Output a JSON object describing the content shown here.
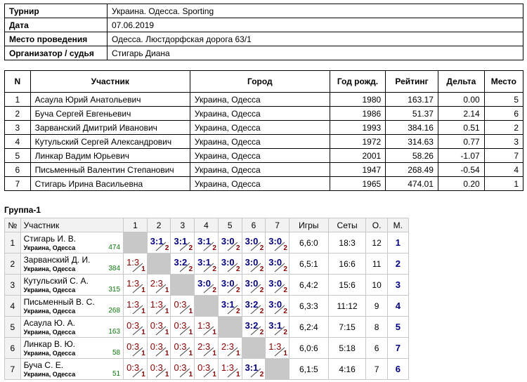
{
  "info": [
    {
      "key": "Турнир",
      "value": "Украина. Одесса. Sporting"
    },
    {
      "key": "Дата",
      "value": "07.06.2019"
    },
    {
      "key": "Место проведения",
      "value": "Одесса. Люстдорфская дорога 63/1"
    },
    {
      "key": "Организатор / судья",
      "value": "Стигарь Диана"
    }
  ],
  "players_table": {
    "headers": [
      "N",
      "Участник",
      "Город",
      "Год рожд.",
      "Рейтинг",
      "Дельта",
      "Место"
    ],
    "rows": [
      [
        "1",
        "Асаула Юрий Анатольевич",
        "Украина, Одесса",
        "1980",
        "163.17",
        "0.00",
        "5"
      ],
      [
        "2",
        "Буча Сергей Евгеньевич",
        "Украина, Одесса",
        "1986",
        "51.37",
        "2.14",
        "6"
      ],
      [
        "3",
        "Зарванский Дмитрий Иванович",
        "Украина, Одесса",
        "1993",
        "384.16",
        "0.51",
        "2"
      ],
      [
        "4",
        "Кутульский Сергей Александрович",
        "Украина, Одесса",
        "1972",
        "314.63",
        "0.77",
        "3"
      ],
      [
        "5",
        "Линкар Вадим Юрьевич",
        "Украина, Одесса",
        "2001",
        "58.26",
        "-1.07",
        "7"
      ],
      [
        "6",
        "Письменный Валентин Степанович",
        "Украина, Одесса",
        "1947",
        "268.49",
        "-0.54",
        "4"
      ],
      [
        "7",
        "Стигарь Ирина Васильевна",
        "Украина, Одесса",
        "1965",
        "474.01",
        "0.20",
        "1"
      ]
    ]
  },
  "group": {
    "title": "Группа-1",
    "headers": {
      "n": "№",
      "player": "Участник",
      "cols": [
        "1",
        "2",
        "3",
        "4",
        "5",
        "6",
        "7"
      ],
      "games": "Игры",
      "sets": "Сеты",
      "points": "О.",
      "place": "М."
    },
    "rows": [
      {
        "n": "1",
        "name": "Стигарь И. В.",
        "city": "Украина, Одесса",
        "rating": "474",
        "cells": [
          null,
          {
            "s": "3:1",
            "p": "2"
          },
          {
            "s": "3:1",
            "p": "2"
          },
          {
            "s": "3:1",
            "p": "2"
          },
          {
            "s": "3:0",
            "p": "2"
          },
          {
            "s": "3:0",
            "p": "2"
          },
          {
            "s": "3:0",
            "p": "2"
          }
        ],
        "games": "6,6:0",
        "sets": "18:3",
        "points": "12",
        "place": "1"
      },
      {
        "n": "2",
        "name": "Зарванский Д. И.",
        "city": "Украина, Одесса",
        "rating": "384",
        "cells": [
          {
            "s": "1:3",
            "p": "1"
          },
          null,
          {
            "s": "3:2",
            "p": "2"
          },
          {
            "s": "3:1",
            "p": "2"
          },
          {
            "s": "3:0",
            "p": "2"
          },
          {
            "s": "3:0",
            "p": "2"
          },
          {
            "s": "3:0",
            "p": "2"
          }
        ],
        "games": "6,5:1",
        "sets": "16:6",
        "points": "11",
        "place": "2"
      },
      {
        "n": "3",
        "name": "Кутульский С. А.",
        "city": "Украина, Одесса",
        "rating": "315",
        "cells": [
          {
            "s": "1:3",
            "p": "1"
          },
          {
            "s": "2:3",
            "p": "1"
          },
          null,
          {
            "s": "3:0",
            "p": "2"
          },
          {
            "s": "3:0",
            "p": "2"
          },
          {
            "s": "3:0",
            "p": "2"
          },
          {
            "s": "3:0",
            "p": "2"
          }
        ],
        "games": "6,4:2",
        "sets": "15:6",
        "points": "10",
        "place": "3"
      },
      {
        "n": "4",
        "name": "Письменный В. С.",
        "city": "Украина, Одесса",
        "rating": "268",
        "cells": [
          {
            "s": "1:3",
            "p": "1"
          },
          {
            "s": "1:3",
            "p": "1"
          },
          {
            "s": "0:3",
            "p": "1"
          },
          null,
          {
            "s": "3:1",
            "p": "2"
          },
          {
            "s": "3:2",
            "p": "2"
          },
          {
            "s": "3:0",
            "p": "2"
          }
        ],
        "games": "6,3:3",
        "sets": "11:12",
        "points": "9",
        "place": "4"
      },
      {
        "n": "5",
        "name": "Асаула Ю. А.",
        "city": "Украина, Одесса",
        "rating": "163",
        "cells": [
          {
            "s": "0:3",
            "p": "1"
          },
          {
            "s": "0:3",
            "p": "1"
          },
          {
            "s": "0:3",
            "p": "1"
          },
          {
            "s": "1:3",
            "p": "1"
          },
          null,
          {
            "s": "3:2",
            "p": "2"
          },
          {
            "s": "3:1",
            "p": "2"
          }
        ],
        "games": "6,2:4",
        "sets": "7:15",
        "points": "8",
        "place": "5"
      },
      {
        "n": "6",
        "name": "Линкар В. Ю.",
        "city": "Украина, Одесса",
        "rating": "58",
        "cells": [
          {
            "s": "0:3",
            "p": "1"
          },
          {
            "s": "0:3",
            "p": "1"
          },
          {
            "s": "0:3",
            "p": "1"
          },
          {
            "s": "2:3",
            "p": "1"
          },
          {
            "s": "2:3",
            "p": "1"
          },
          null,
          {
            "s": "1:3",
            "p": "1"
          }
        ],
        "games": "6,0:6",
        "sets": "5:18",
        "points": "6",
        "place": "7"
      },
      {
        "n": "7",
        "name": "Буча С. Е.",
        "city": "Украина, Одесса",
        "rating": "51",
        "cells": [
          {
            "s": "0:3",
            "p": "1"
          },
          {
            "s": "0:3",
            "p": "1"
          },
          {
            "s": "0:3",
            "p": "1"
          },
          {
            "s": "0:3",
            "p": "1"
          },
          {
            "s": "1:3",
            "p": "1"
          },
          {
            "s": "3:1",
            "p": "2"
          },
          null
        ],
        "games": "6,1:5",
        "sets": "4:16",
        "points": "7",
        "place": "6"
      }
    ]
  }
}
